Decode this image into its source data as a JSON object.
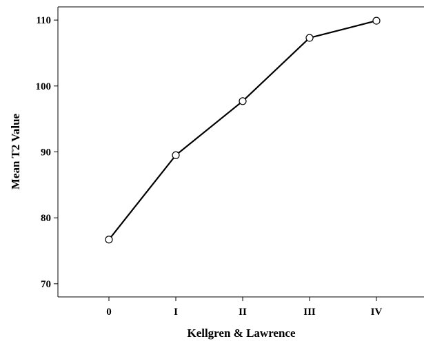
{
  "chart_data": {
    "type": "line",
    "xlabel": "Kellgren & Lawrence",
    "ylabel": "Mean T2 Value",
    "categories": [
      "0",
      "I",
      "II",
      "III",
      "IV"
    ],
    "values": [
      76.7,
      89.5,
      97.7,
      107.3,
      109.9
    ],
    "ylim": [
      68,
      112
    ],
    "yticks": [
      70,
      80,
      90,
      100,
      110
    ],
    "grid": false,
    "legend": "none",
    "line_color": "#000000",
    "marker": "open-circle"
  }
}
